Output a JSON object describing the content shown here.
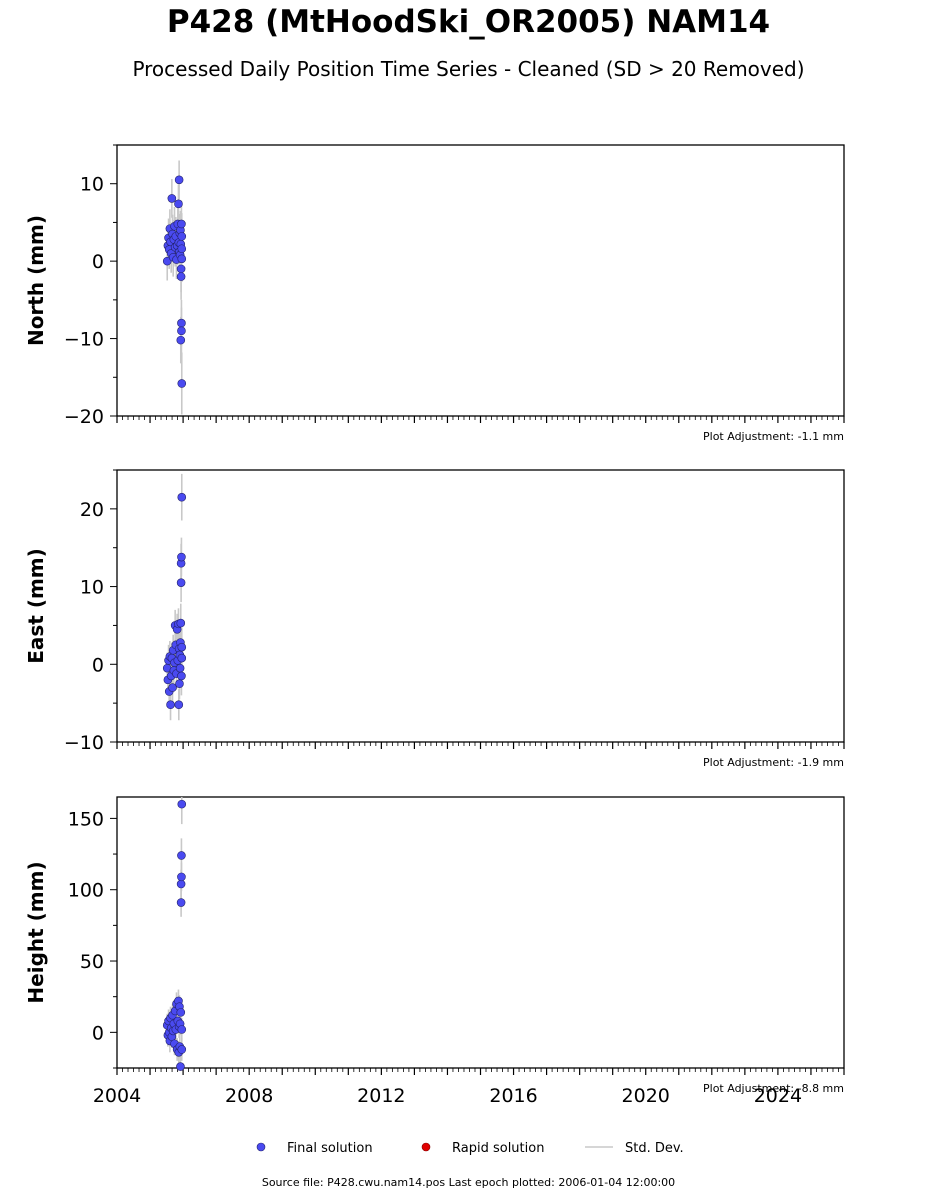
{
  "page": {
    "title": "P428 (MtHoodSki_OR2005) NAM14",
    "subtitle": "Processed Daily Position Time Series - Cleaned (SD > 20 Removed)",
    "footer": "Source file: P428.cwu.nam14.pos  Last epoch plotted: 2006-01-04 12:00:00"
  },
  "colors": {
    "final": "#4a4af0",
    "rapid": "#e00000",
    "stddev": "#c8c8c8"
  },
  "legend": {
    "final": "Final solution",
    "rapid": "Rapid solution",
    "stddev": "Std. Dev."
  },
  "chart_data": [
    {
      "type": "scatter",
      "ylabel": "North (mm)",
      "ylim": [
        -20,
        15
      ],
      "xlim": [
        2004,
        2026
      ],
      "yticks": [
        10,
        0,
        -10,
        -20
      ],
      "adjustment": "Plot Adjustment: -1.1 mm",
      "series": [
        {
          "name": "Final solution",
          "points": [
            [
              2005.52,
              0.0,
              2.5
            ],
            [
              2005.54,
              2.0,
              2.5
            ],
            [
              2005.56,
              3.0,
              2.5
            ],
            [
              2005.58,
              1.5,
              2.5
            ],
            [
              2005.6,
              4.2,
              2.5
            ],
            [
              2005.62,
              2.5,
              2.5
            ],
            [
              2005.64,
              1.0,
              2.5
            ],
            [
              2005.66,
              8.1,
              2.5
            ],
            [
              2005.68,
              3.5,
              2.5
            ],
            [
              2005.7,
              0.5,
              2.5
            ],
            [
              2005.72,
              2.8,
              2.5
            ],
            [
              2005.74,
              4.5,
              2.5
            ],
            [
              2005.76,
              1.8,
              2.5
            ],
            [
              2005.78,
              3.2,
              2.5
            ],
            [
              2005.8,
              0.2,
              2.5
            ],
            [
              2005.82,
              2.0,
              2.5
            ],
            [
              2005.84,
              4.8,
              2.5
            ],
            [
              2005.86,
              7.4,
              2.5
            ],
            [
              2005.87,
              2.4,
              2.5
            ],
            [
              2005.88,
              10.5,
              2.5
            ],
            [
              2005.89,
              1.2,
              2.5
            ],
            [
              2005.9,
              3.6,
              2.5
            ],
            [
              2005.91,
              0.8,
              2.5
            ],
            [
              2005.92,
              4.0,
              2.5
            ],
            [
              2005.93,
              2.2,
              3.0
            ],
            [
              2005.94,
              -1.0,
              3.0
            ],
            [
              2005.94,
              -2.0,
              3.0
            ],
            [
              2005.95,
              4.8,
              3.0
            ],
            [
              2005.95,
              -8.0,
              3.0
            ],
            [
              2005.95,
              -9.0,
              3.0
            ],
            [
              2005.93,
              -10.2,
              3.0
            ],
            [
              2005.96,
              -15.8,
              4.0
            ],
            [
              2005.96,
              0.3,
              3.0
            ],
            [
              2005.96,
              1.6,
              3.0
            ],
            [
              2005.96,
              3.2,
              3.0
            ]
          ]
        }
      ]
    },
    {
      "type": "scatter",
      "ylabel": "East (mm)",
      "ylim": [
        -10,
        25
      ],
      "xlim": [
        2004,
        2026
      ],
      "yticks": [
        20,
        10,
        0,
        -10
      ],
      "adjustment": "Plot Adjustment: -1.9 mm",
      "series": [
        {
          "name": "Final solution",
          "points": [
            [
              2005.52,
              -0.5,
              2.0
            ],
            [
              2005.54,
              -2.0,
              2.0
            ],
            [
              2005.56,
              0.5,
              2.0
            ],
            [
              2005.58,
              -3.5,
              2.0
            ],
            [
              2005.6,
              1.0,
              2.0
            ],
            [
              2005.62,
              -5.2,
              2.0
            ],
            [
              2005.64,
              -1.5,
              2.0
            ],
            [
              2005.66,
              0.8,
              2.0
            ],
            [
              2005.68,
              -3.0,
              2.0
            ],
            [
              2005.7,
              1.8,
              2.0
            ],
            [
              2005.72,
              -0.8,
              2.0
            ],
            [
              2005.74,
              0.2,
              2.0
            ],
            [
              2005.76,
              5.0,
              2.0
            ],
            [
              2005.78,
              2.5,
              2.0
            ],
            [
              2005.8,
              -1.2,
              2.0
            ],
            [
              2005.82,
              4.5,
              2.0
            ],
            [
              2005.84,
              0.5,
              2.0
            ],
            [
              2005.86,
              5.2,
              2.0
            ],
            [
              2005.87,
              -5.2,
              2.0
            ],
            [
              2005.88,
              2.0,
              2.0
            ],
            [
              2005.89,
              -2.5,
              2.0
            ],
            [
              2005.9,
              1.2,
              2.0
            ],
            [
              2005.91,
              -0.5,
              2.0
            ],
            [
              2005.92,
              2.8,
              2.0
            ],
            [
              2005.93,
              5.3,
              2.5
            ],
            [
              2005.94,
              10.5,
              2.5
            ],
            [
              2005.94,
              13.0,
              2.5
            ],
            [
              2005.95,
              13.8,
              2.5
            ],
            [
              2005.96,
              21.5,
              3.0
            ],
            [
              2005.95,
              -1.5,
              2.5
            ],
            [
              2005.96,
              0.8,
              2.5
            ],
            [
              2005.96,
              2.2,
              2.5
            ]
          ]
        }
      ]
    },
    {
      "type": "scatter",
      "ylabel": "Height (mm)",
      "ylim": [
        -25,
        165
      ],
      "xlim": [
        2004,
        2026
      ],
      "yticks": [
        150,
        100,
        50,
        0
      ],
      "xticks": [
        2004,
        2008,
        2012,
        2016,
        2020,
        2024
      ],
      "adjustment": "Plot Adjustment: -8.8 mm",
      "series": [
        {
          "name": "Final solution",
          "points": [
            [
              2005.52,
              5.0,
              8.0
            ],
            [
              2005.54,
              -2.0,
              8.0
            ],
            [
              2005.56,
              8.0,
              8.0
            ],
            [
              2005.58,
              0.0,
              8.0
            ],
            [
              2005.6,
              -6.0,
              8.0
            ],
            [
              2005.62,
              10.0,
              8.0
            ],
            [
              2005.64,
              3.0,
              8.0
            ],
            [
              2005.66,
              -3.0,
              8.0
            ],
            [
              2005.68,
              12.0,
              8.0
            ],
            [
              2005.7,
              1.0,
              8.0
            ],
            [
              2005.72,
              6.0,
              8.0
            ],
            [
              2005.74,
              -8.0,
              8.0
            ],
            [
              2005.76,
              15.0,
              8.0
            ],
            [
              2005.78,
              2.0,
              8.0
            ],
            [
              2005.8,
              20.0,
              8.0
            ],
            [
              2005.82,
              -12.0,
              8.0
            ],
            [
              2005.84,
              8.0,
              8.0
            ],
            [
              2005.86,
              22.0,
              8.0
            ],
            [
              2005.87,
              -14.0,
              8.0
            ],
            [
              2005.88,
              4.0,
              8.0
            ],
            [
              2005.89,
              18.0,
              8.0
            ],
            [
              2005.9,
              -10.0,
              8.0
            ],
            [
              2005.91,
              6.0,
              8.0
            ],
            [
              2005.92,
              -24.0,
              8.0
            ],
            [
              2005.93,
              14.0,
              8.0
            ],
            [
              2005.94,
              91.0,
              10.0
            ],
            [
              2005.94,
              104.0,
              10.0
            ],
            [
              2005.95,
              109.0,
              10.0
            ],
            [
              2005.95,
              124.0,
              12.0
            ],
            [
              2005.96,
              160.0,
              14.0
            ],
            [
              2005.96,
              2.0,
              8.0
            ],
            [
              2005.96,
              -12.0,
              8.0
            ]
          ]
        }
      ]
    }
  ]
}
